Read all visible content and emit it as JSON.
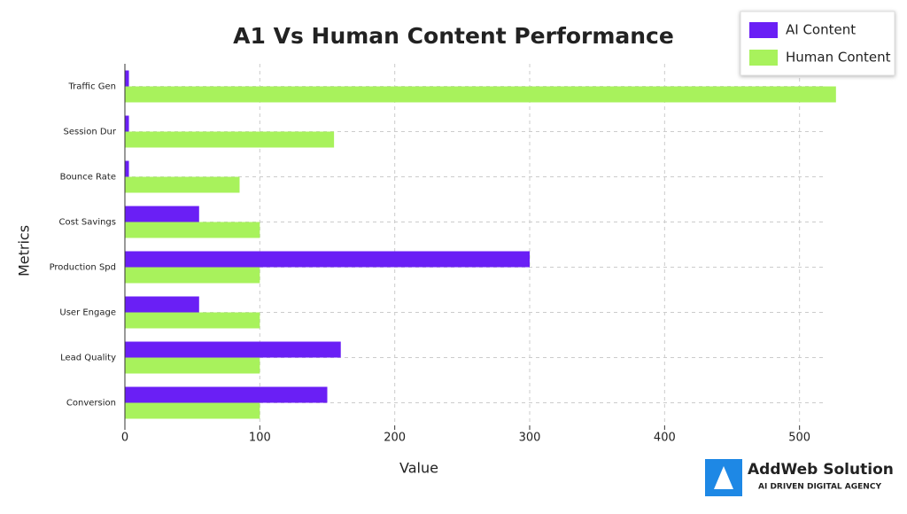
{
  "chart_data": {
    "type": "hbar",
    "title": "A1 Vs Human Content Performance",
    "x_label": "Value",
    "y_label": "Metrics",
    "categories": [
      "Traffic Gen",
      "Session Dur",
      "Bounce Rate",
      "Cost Savings",
      "Production Spd",
      "User Engage",
      "Lead Quality",
      "Conversion"
    ],
    "series": [
      {
        "name": "AI Content",
        "color": "#6a1ff5",
        "values": [
          3,
          3,
          3,
          55,
          300,
          55,
          160,
          150
        ]
      },
      {
        "name": "Human Content",
        "color": "#a8f25c",
        "values": [
          527,
          155,
          85,
          100,
          100,
          100,
          100,
          100
        ]
      }
    ],
    "xlim": [
      0,
      535
    ],
    "xticks": [
      0,
      100,
      200,
      300,
      400,
      500
    ],
    "grid": true,
    "legend": "upper right"
  },
  "logo": {
    "name": "AddWeb Solution",
    "tagline": "AI DRIVEN DIGITAL AGENCY"
  }
}
